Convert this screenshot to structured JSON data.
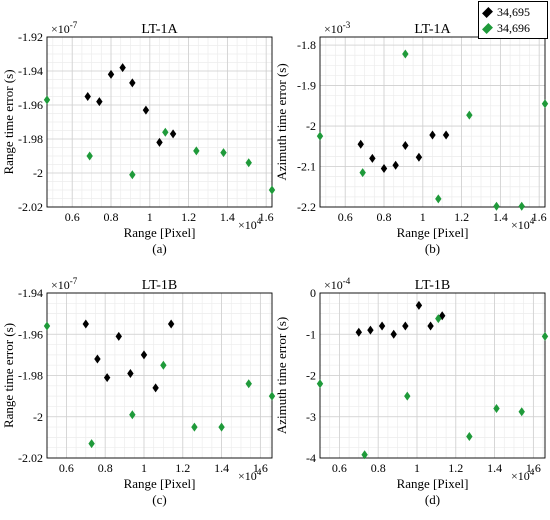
{
  "legend": [
    {
      "label": "34,695",
      "color": "#000000"
    },
    {
      "label": "34,696",
      "color": "#1f9a3a"
    }
  ],
  "chart_data": [
    {
      "type": "scatter",
      "title": "LT-1A",
      "caption": "(a)",
      "xlabel": "Range [Pixel]",
      "ylabel": "Range time error (s)",
      "x_exponent": "×10^4",
      "y_exponent": "×10^-7",
      "xlim": [
        0.47,
        1.63
      ],
      "ylim": [
        -2.02,
        -1.92
      ],
      "xticks": [
        0.6,
        0.8,
        1,
        1.2,
        1.4,
        1.6
      ],
      "xtick_labels": [
        "0.6",
        "0.8",
        "1",
        "1.2",
        "1.4",
        "1.6"
      ],
      "yticks": [
        -2.02,
        -2,
        -1.98,
        -1.96,
        -1.94,
        -1.92
      ],
      "ytick_labels": [
        "-2.02",
        "-2",
        "-1.98",
        "-1.96",
        "-1.94",
        "-1.92"
      ],
      "series": [
        {
          "name": "34,695",
          "color": "#000000",
          "points": [
            [
              0.68,
              -1.955
            ],
            [
              0.74,
              -1.958
            ],
            [
              0.8,
              -1.942
            ],
            [
              0.86,
              -1.938
            ],
            [
              0.91,
              -1.947
            ],
            [
              0.98,
              -1.963
            ],
            [
              1.05,
              -1.982
            ],
            [
              1.12,
              -1.977
            ]
          ]
        },
        {
          "name": "34,696",
          "color": "#1f9a3a",
          "points": [
            [
              0.47,
              -1.957
            ],
            [
              0.69,
              -1.99
            ],
            [
              0.91,
              -2.001
            ],
            [
              1.08,
              -1.976
            ],
            [
              1.24,
              -1.987
            ],
            [
              1.38,
              -1.988
            ],
            [
              1.51,
              -1.994
            ],
            [
              1.63,
              -2.01
            ]
          ]
        }
      ]
    },
    {
      "type": "scatter",
      "title": "LT-1A",
      "caption": "(b)",
      "xlabel": "Range [Pixel]",
      "ylabel": "Azimuth time error (s)",
      "x_exponent": "×10^4",
      "y_exponent": "×10^-3",
      "xlim": [
        0.47,
        1.63
      ],
      "ylim": [
        -2.2,
        -1.78
      ],
      "xticks": [
        0.6,
        0.8,
        1,
        1.2,
        1.4,
        1.6
      ],
      "xtick_labels": [
        "0.6",
        "0.8",
        "1",
        "1.2",
        "1.4",
        "1.6"
      ],
      "yticks": [
        -2.2,
        -2.1,
        -2,
        -1.9,
        -1.8
      ],
      "ytick_labels": [
        "-2.2",
        "-2.1",
        "-2",
        "-1.9",
        "-1.8"
      ],
      "series": [
        {
          "name": "34,695",
          "color": "#000000",
          "points": [
            [
              0.68,
              -2.045
            ],
            [
              0.74,
              -2.08
            ],
            [
              0.8,
              -2.105
            ],
            [
              0.86,
              -2.097
            ],
            [
              0.91,
              -2.048
            ],
            [
              0.98,
              -2.077
            ],
            [
              1.05,
              -2.022
            ],
            [
              1.12,
              -2.022
            ]
          ]
        },
        {
          "name": "34,696",
          "color": "#1f9a3a",
          "points": [
            [
              0.47,
              -2.025
            ],
            [
              0.69,
              -2.115
            ],
            [
              0.91,
              -1.822
            ],
            [
              1.08,
              -2.18
            ],
            [
              1.24,
              -1.973
            ],
            [
              1.38,
              -2.198
            ],
            [
              1.51,
              -2.198
            ],
            [
              1.63,
              -1.945
            ]
          ]
        }
      ]
    },
    {
      "type": "scatter",
      "title": "LT-1B",
      "caption": "(c)",
      "xlabel": "Range [Pixel]",
      "ylabel": "Range time error (s)",
      "x_exponent": "×10^4",
      "y_exponent": "×10^-7",
      "xlim": [
        0.5,
        1.66
      ],
      "ylim": [
        -2.02,
        -1.94
      ],
      "xticks": [
        0.6,
        0.8,
        1,
        1.2,
        1.4,
        1.6
      ],
      "xtick_labels": [
        "0.6",
        "0.8",
        "1",
        "1.2",
        "1.4",
        "1.6"
      ],
      "yticks": [
        -2.02,
        -2,
        -1.98,
        -1.96,
        -1.94
      ],
      "ytick_labels": [
        "-2.02",
        "-2",
        "-1.98",
        "-1.96",
        "-1.94"
      ],
      "series": [
        {
          "name": "34,695",
          "color": "#000000",
          "points": [
            [
              0.7,
              -1.955
            ],
            [
              0.76,
              -1.972
            ],
            [
              0.81,
              -1.981
            ],
            [
              0.87,
              -1.961
            ],
            [
              0.93,
              -1.979
            ],
            [
              1.0,
              -1.97
            ],
            [
              1.06,
              -1.986
            ],
            [
              1.14,
              -1.955
            ]
          ]
        },
        {
          "name": "34,696",
          "color": "#1f9a3a",
          "points": [
            [
              0.5,
              -1.956
            ],
            [
              0.73,
              -2.013
            ],
            [
              0.94,
              -1.999
            ],
            [
              1.1,
              -1.975
            ],
            [
              1.26,
              -2.005
            ],
            [
              1.4,
              -2.005
            ],
            [
              1.54,
              -1.984
            ],
            [
              1.66,
              -1.99
            ]
          ]
        }
      ]
    },
    {
      "type": "scatter",
      "title": "LT-1B",
      "caption": "(d)",
      "xlabel": "Range [Pixel]",
      "ylabel": "Azimuth time error (s)",
      "x_exponent": "×10^4",
      "y_exponent": "×10^-4",
      "xlim": [
        0.5,
        1.66
      ],
      "ylim": [
        -4,
        0
      ],
      "xticks": [
        0.6,
        0.8,
        1,
        1.2,
        1.4,
        1.6
      ],
      "xtick_labels": [
        "0.6",
        "0.8",
        "1",
        "1.2",
        "1.4",
        "1.6"
      ],
      "yticks": [
        -4,
        -3,
        -2,
        -1,
        0
      ],
      "ytick_labels": [
        "-4",
        "-3",
        "-2",
        "-1",
        "0"
      ],
      "series": [
        {
          "name": "34,695",
          "color": "#000000",
          "points": [
            [
              0.7,
              -0.95
            ],
            [
              0.76,
              -0.9
            ],
            [
              0.82,
              -0.8
            ],
            [
              0.88,
              -1.0
            ],
            [
              0.94,
              -0.8
            ],
            [
              1.01,
              -0.3
            ],
            [
              1.07,
              -0.8
            ],
            [
              1.13,
              -0.55
            ]
          ]
        },
        {
          "name": "34,696",
          "color": "#1f9a3a",
          "points": [
            [
              0.5,
              -2.2
            ],
            [
              0.73,
              -3.92
            ],
            [
              0.95,
              -2.5
            ],
            [
              1.11,
              -0.62
            ],
            [
              1.27,
              -3.48
            ],
            [
              1.41,
              -2.8
            ],
            [
              1.54,
              -2.88
            ],
            [
              1.66,
              -1.05
            ]
          ]
        }
      ]
    }
  ]
}
